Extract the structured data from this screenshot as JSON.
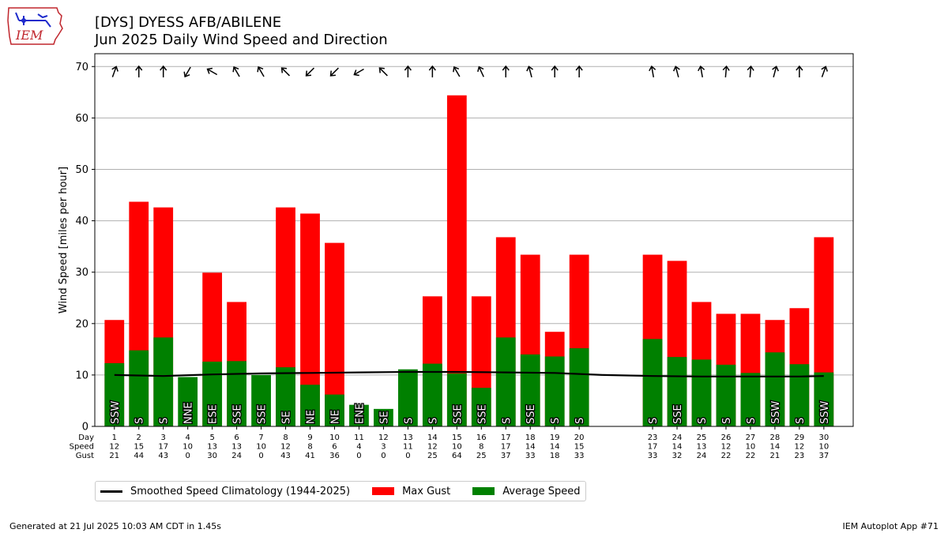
{
  "header": {
    "title_line1": "[DYS] DYESS AFB/ABILENE",
    "title_line2": "Jun 2025 Daily Wind Speed and Direction"
  },
  "logo": {
    "text": "IEM",
    "color": "#c0262d",
    "accent": "#1f2bcc"
  },
  "footer": {
    "left": "Generated at 21 Jul 2025 10:03 AM CDT in 1.45s",
    "right": "IEM Autoplot App #71"
  },
  "legend": {
    "climatology": "Smoothed Speed Climatology (1944-2025)",
    "gust": "Max Gust",
    "speed": "Average Speed"
  },
  "colors": {
    "gust": "#ff0000",
    "speed": "#008000",
    "climatology": "#000000",
    "grid": "#b0b0b0"
  },
  "chart_data": {
    "type": "bar",
    "ylabel": "Wind Speed [miles per hour]",
    "ylim": [
      0,
      72.5
    ],
    "yticks": [
      0,
      10,
      20,
      30,
      40,
      50,
      60,
      70
    ],
    "grid": true,
    "legend_position": "below",
    "row_labels": [
      "Day",
      "Speed",
      "Gust"
    ],
    "days": [
      1,
      2,
      3,
      4,
      5,
      6,
      7,
      8,
      9,
      10,
      11,
      12,
      13,
      14,
      15,
      16,
      17,
      18,
      19,
      20,
      23,
      24,
      25,
      26,
      27,
      28,
      29,
      30
    ],
    "avg_speed": [
      12.3,
      14.8,
      17.3,
      9.6,
      12.6,
      12.7,
      10.0,
      11.5,
      8.1,
      6.2,
      4.2,
      3.4,
      11.1,
      12.2,
      10.3,
      7.5,
      17.3,
      14.0,
      13.6,
      15.2,
      17.0,
      13.5,
      13.0,
      12.0,
      10.4,
      14.4,
      12.1,
      10.5
    ],
    "max_gust": [
      20.7,
      43.7,
      42.6,
      0,
      29.9,
      24.2,
      0,
      42.6,
      41.4,
      35.7,
      0,
      0,
      0,
      25.3,
      64.4,
      25.3,
      36.8,
      33.4,
      18.4,
      33.4,
      33.4,
      32.2,
      24.2,
      21.9,
      21.9,
      20.7,
      23.0,
      36.8
    ],
    "speed_label": [
      12,
      15,
      17,
      10,
      13,
      13,
      10,
      12,
      8,
      6,
      4,
      3,
      11,
      12,
      10,
      8,
      17,
      14,
      14,
      15,
      17,
      14,
      13,
      12,
      10,
      14,
      12,
      10
    ],
    "gust_label": [
      21,
      44,
      43,
      0,
      30,
      24,
      0,
      43,
      41,
      36,
      0,
      0,
      0,
      25,
      64,
      25,
      37,
      33,
      18,
      33,
      33,
      32,
      24,
      22,
      22,
      21,
      23,
      37
    ],
    "direction": [
      "SSW",
      "S",
      "S",
      "NNE",
      "ESE",
      "SSE",
      "SSE",
      "SE",
      "NE",
      "NE",
      "ENE",
      "SE",
      "S",
      "S",
      "SSE",
      "SSE",
      "S",
      "SSE",
      "S",
      "S",
      "S",
      "SSE",
      "S",
      "S",
      "S",
      "SSW",
      "S",
      "SSW"
    ],
    "arrow_angle_deg": [
      20,
      0,
      0,
      210,
      300,
      330,
      330,
      315,
      225,
      225,
      240,
      315,
      0,
      0,
      330,
      335,
      0,
      345,
      0,
      0,
      350,
      345,
      350,
      5,
      5,
      15,
      0,
      20
    ],
    "climatology": {
      "day": [
        1,
        3,
        5,
        7,
        9,
        11,
        13,
        15,
        17,
        19,
        21,
        23,
        25,
        27,
        29,
        30
      ],
      "value": [
        10.0,
        9.8,
        10.1,
        10.3,
        10.4,
        10.5,
        10.6,
        10.6,
        10.5,
        10.4,
        10.0,
        9.8,
        9.7,
        9.7,
        9.7,
        9.8
      ]
    }
  }
}
